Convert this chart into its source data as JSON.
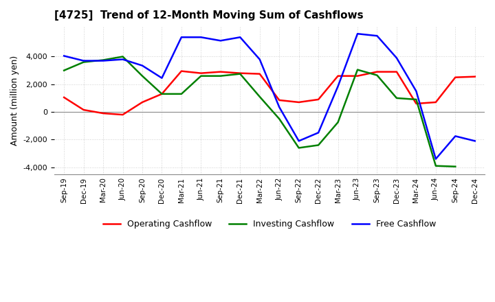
{
  "title": "[4725]  Trend of 12-Month Moving Sum of Cashflows",
  "ylabel": "Amount (million yen)",
  "legend": [
    "Operating Cashflow",
    "Investing Cashflow",
    "Free Cashflow"
  ],
  "line_colors": [
    "#ff0000",
    "#008000",
    "#0000ff"
  ],
  "x_labels": [
    "Sep-19",
    "Dec-19",
    "Mar-20",
    "Jun-20",
    "Sep-20",
    "Dec-20",
    "Mar-21",
    "Jun-21",
    "Sep-21",
    "Dec-21",
    "Mar-22",
    "Jun-22",
    "Sep-22",
    "Dec-22",
    "Mar-23",
    "Jun-23",
    "Sep-23",
    "Dec-23",
    "Mar-24",
    "Jun-24",
    "Sep-24",
    "Dec-24"
  ],
  "operating": [
    1050,
    150,
    -100,
    -200,
    700,
    1300,
    2950,
    2800,
    2900,
    2800,
    2750,
    850,
    700,
    900,
    2600,
    2600,
    2900,
    2900,
    600,
    700,
    2500,
    2550
  ],
  "investing": [
    3000,
    3600,
    3750,
    4000,
    2600,
    1300,
    1300,
    2600,
    2600,
    2750,
    1100,
    -500,
    -2600,
    -2400,
    -750,
    3050,
    2650,
    1000,
    900,
    -3900,
    -3950,
    null
  ],
  "free": [
    4050,
    3700,
    3700,
    3800,
    3350,
    2450,
    5400,
    5400,
    5150,
    5400,
    3800,
    350,
    -2100,
    -1500,
    1850,
    5650,
    5500,
    3900,
    1500,
    -3400,
    -1750,
    -2100
  ],
  "ylim": [
    -4500,
    6200
  ],
  "yticks": [
    -4000,
    -2000,
    0,
    2000,
    4000
  ],
  "background_color": "#ffffff",
  "grid_color": "#d0d0d0"
}
